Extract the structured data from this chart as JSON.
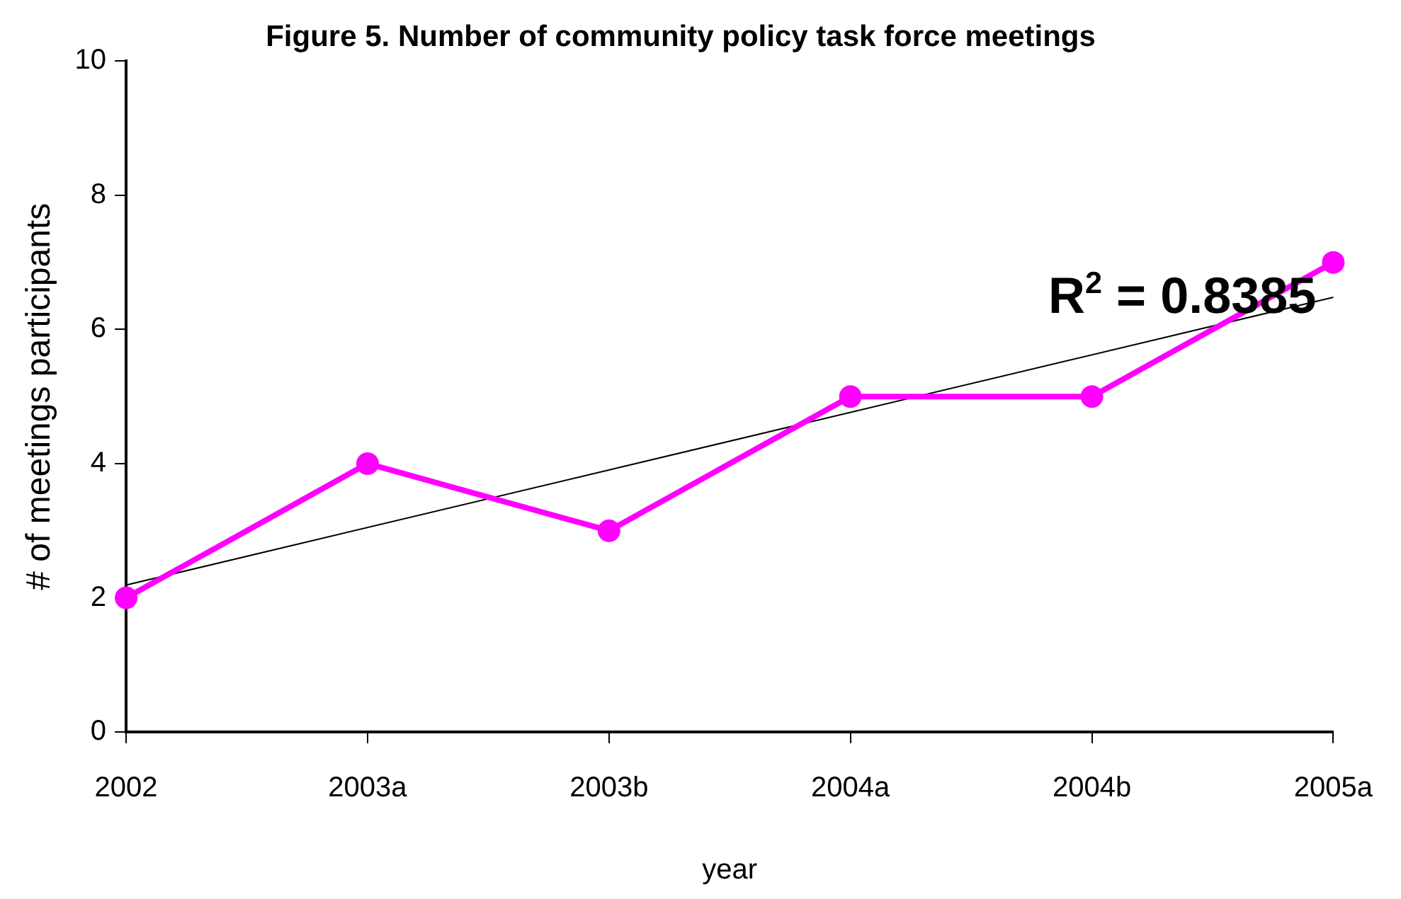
{
  "chart_data": {
    "type": "line",
    "title": "Figure 5. Number of community policy task force meetings",
    "xlabel": "year",
    "ylabel": "# of meetings participants",
    "categories": [
      "2002",
      "2003a",
      "2003b",
      "2004a",
      "2004b",
      "2005a"
    ],
    "series": [
      {
        "color": "#ff00ff",
        "values": [
          2,
          4,
          3,
          5,
          5,
          7
        ],
        "marker": "circle"
      },
      {
        "type": "line",
        "values": [
          2.19,
          null,
          null,
          null,
          null,
          6.48
        ],
        "color": "#000000",
        "marker": "none"
      }
    ],
    "ylim": [
      0,
      10
    ],
    "yticks": [
      0,
      2,
      4,
      6,
      8,
      10
    ],
    "grid": false,
    "legend": false,
    "annotations": [
      "R$^{2}$ = 0.8385"
    ]
  }
}
